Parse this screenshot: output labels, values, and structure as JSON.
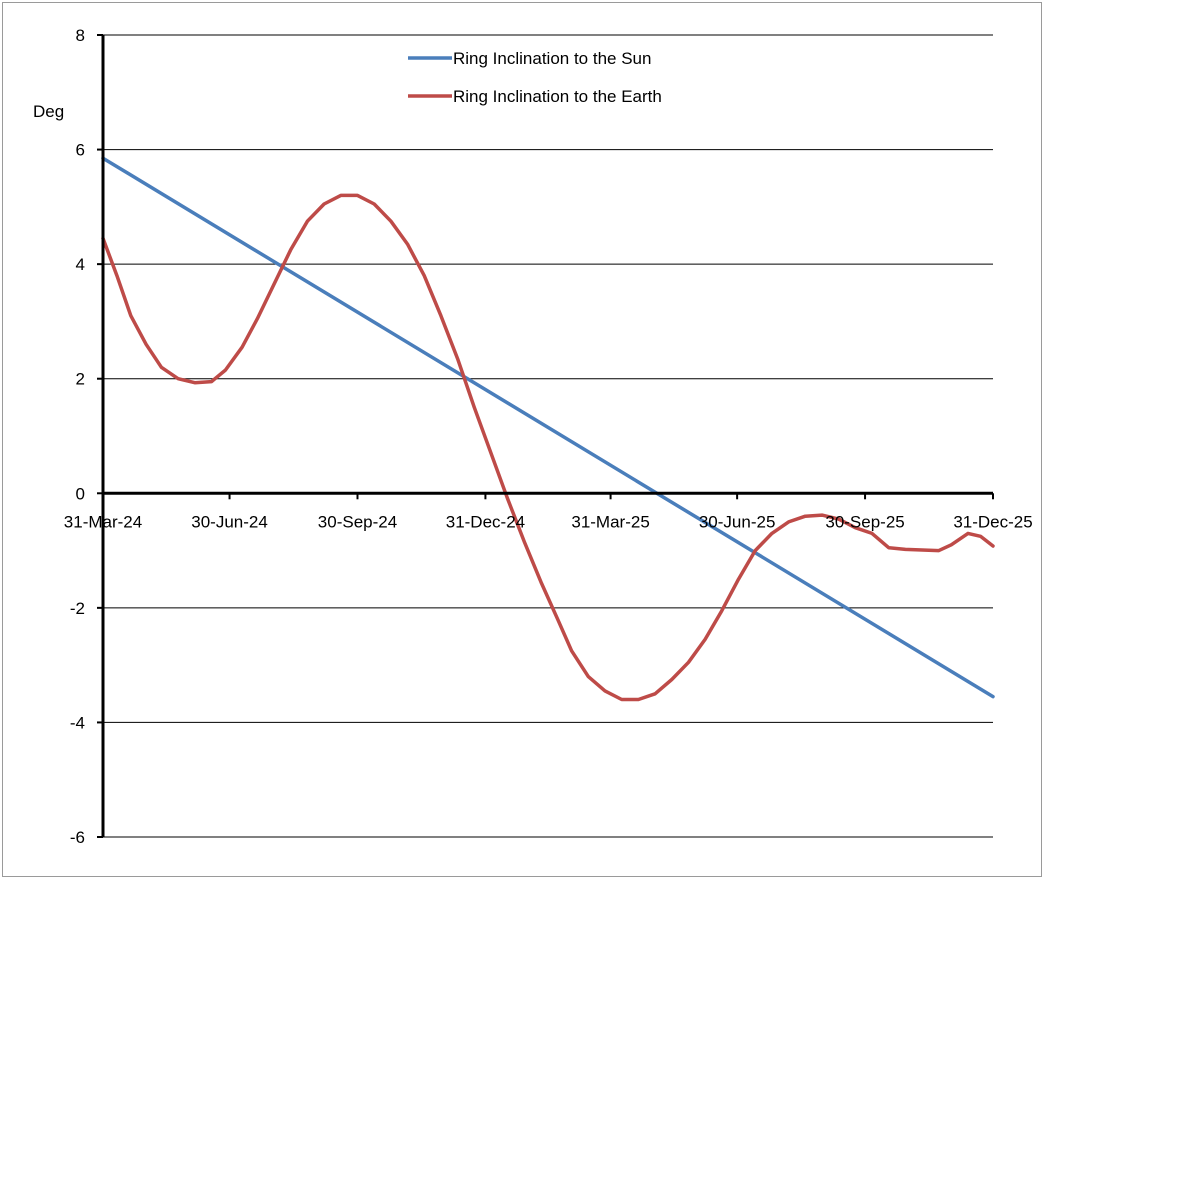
{
  "chart_data": {
    "type": "line",
    "ylabel": "Deg",
    "ylim": [
      -6,
      8
    ],
    "yticks": [
      -6,
      -4,
      -2,
      0,
      2,
      4,
      6,
      8
    ],
    "xlim": [
      "2024-03-31",
      "2025-12-31"
    ],
    "xticks": [
      {
        "date": "2024-03-31",
        "label": "31-Mar-24"
      },
      {
        "date": "2024-06-30",
        "label": "30-Jun-24"
      },
      {
        "date": "2024-09-30",
        "label": "30-Sep-24"
      },
      {
        "date": "2024-12-31",
        "label": "31-Dec-24"
      },
      {
        "date": "2025-03-31",
        "label": "31-Mar-25"
      },
      {
        "date": "2025-06-30",
        "label": "30-Jun-25"
      },
      {
        "date": "2025-09-30",
        "label": "30-Sep-25"
      },
      {
        "date": "2025-12-31",
        "label": "31-Dec-25"
      }
    ],
    "grid": "horizontal",
    "legend_position": "top-center",
    "series": [
      {
        "name": "Ring Inclination to the Sun",
        "color": "#4a7ebb",
        "x": [
          "2024-03-31",
          "2025-12-31"
        ],
        "y": [
          5.85,
          -3.55
        ]
      },
      {
        "name": "Ring Inclination to the Earth",
        "color": "#be4b48",
        "x": [
          "2024-03-31",
          "2024-04-10",
          "2024-04-20",
          "2024-05-01",
          "2024-05-12",
          "2024-05-24",
          "2024-06-05",
          "2024-06-17",
          "2024-06-27",
          "2024-07-09",
          "2024-07-20",
          "2024-08-01",
          "2024-08-13",
          "2024-08-25",
          "2024-09-06",
          "2024-09-18",
          "2024-09-30",
          "2024-10-12",
          "2024-10-24",
          "2024-11-05",
          "2024-11-17",
          "2024-11-29",
          "2024-12-11",
          "2024-12-23",
          "2025-01-04",
          "2025-01-16",
          "2025-01-28",
          "2025-02-09",
          "2025-02-21",
          "2025-03-03",
          "2025-03-15",
          "2025-03-27",
          "2025-04-08",
          "2025-04-20",
          "2025-05-02",
          "2025-05-14",
          "2025-05-26",
          "2025-06-07",
          "2025-06-19",
          "2025-07-01",
          "2025-07-13",
          "2025-07-25",
          "2025-08-06",
          "2025-08-18",
          "2025-08-30",
          "2025-09-11",
          "2025-09-23",
          "2025-10-05",
          "2025-10-17",
          "2025-10-29",
          "2025-11-10",
          "2025-11-22",
          "2025-12-01",
          "2025-12-13",
          "2025-12-22",
          "2025-12-31"
        ],
        "y": [
          4.45,
          3.8,
          3.1,
          2.6,
          2.2,
          2.0,
          1.93,
          1.95,
          2.15,
          2.55,
          3.05,
          3.65,
          4.25,
          4.75,
          5.05,
          5.2,
          5.2,
          5.05,
          4.75,
          4.35,
          3.8,
          3.1,
          2.35,
          1.5,
          0.7,
          -0.1,
          -0.85,
          -1.55,
          -2.2,
          -2.75,
          -3.2,
          -3.45,
          -3.6,
          -3.6,
          -3.5,
          -3.25,
          -2.95,
          -2.55,
          -2.05,
          -1.5,
          -1.0,
          -0.7,
          -0.5,
          -0.4,
          -0.38,
          -0.45,
          -0.6,
          -0.7,
          -0.95,
          -0.98,
          -0.99,
          -1.0,
          -0.9,
          -0.7,
          -0.75,
          -0.92
        ]
      }
    ]
  }
}
